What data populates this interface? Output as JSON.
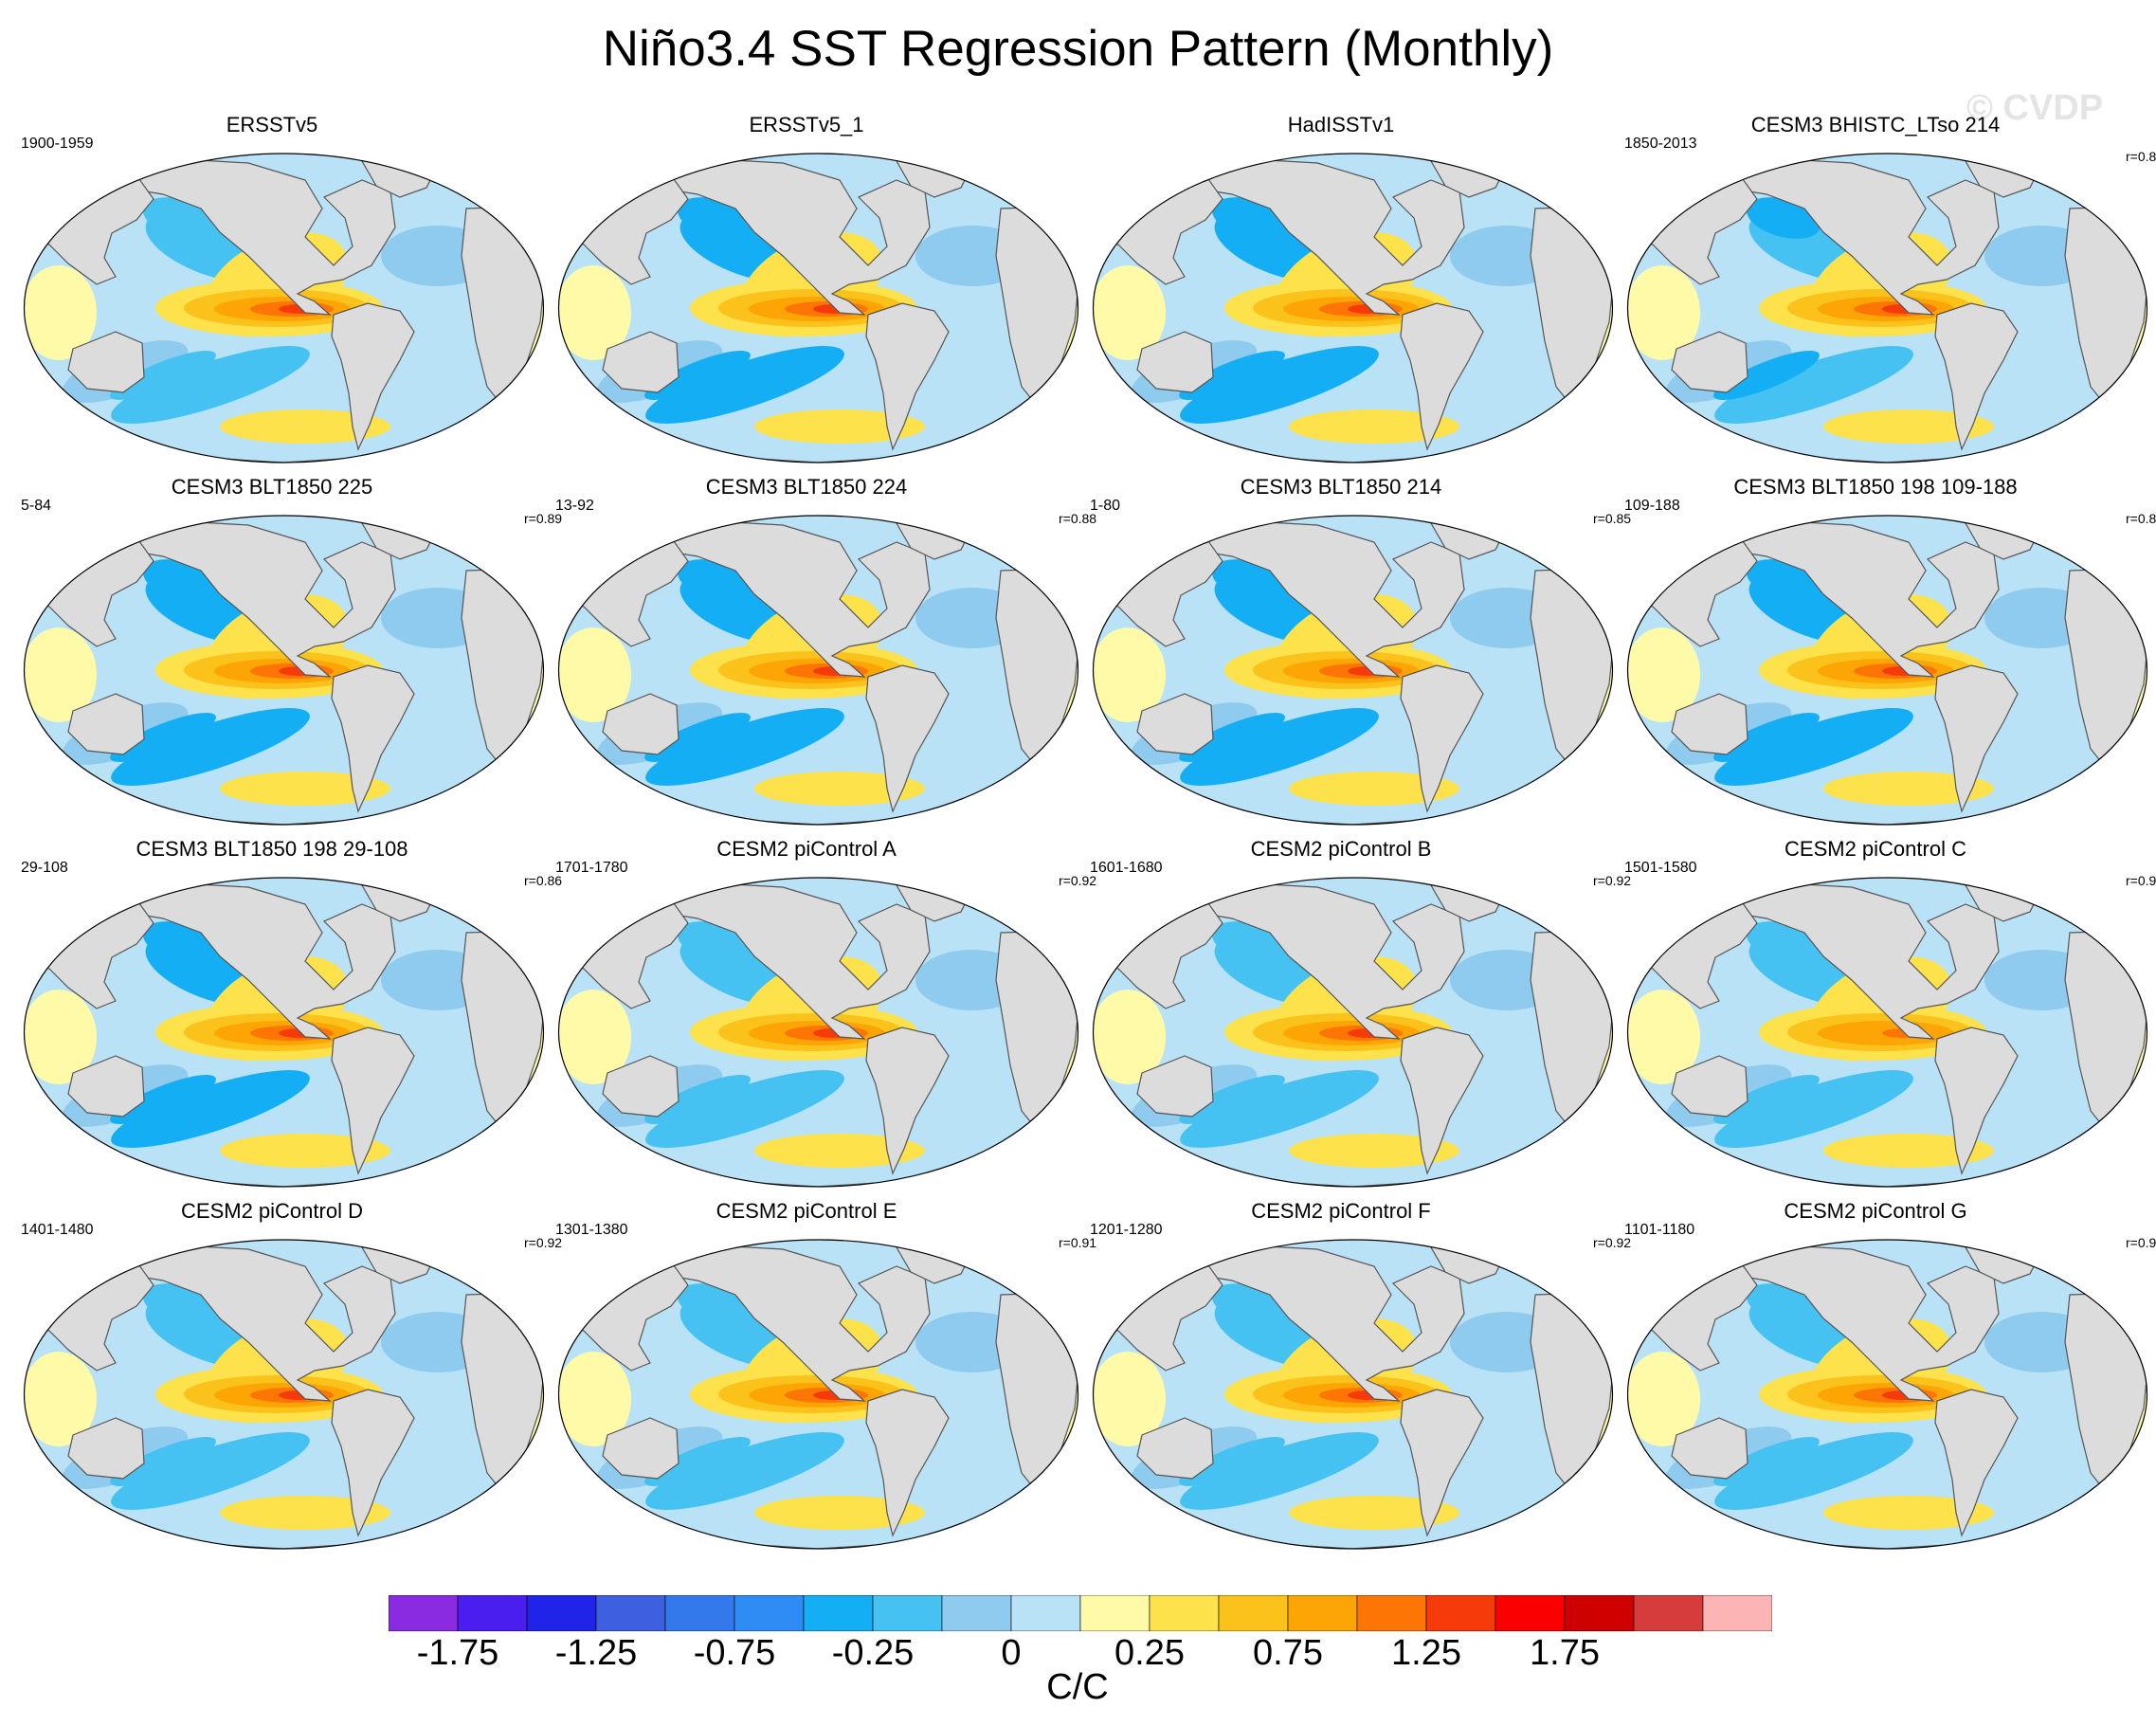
{
  "title": "Niño3.4 SST Regression Pattern (Monthly)",
  "watermark": "© CVDP",
  "panels": [
    {
      "title": "ERSSTv5",
      "period": "1900-1959",
      "r": "",
      "warm": 1.0,
      "south_cool": 0.55
    },
    {
      "title": "ERSSTv5_1",
      "period": "",
      "r": "",
      "warm": 1.05,
      "south_cool": 0.75
    },
    {
      "title": "HadISSTv1",
      "period": "",
      "r": "",
      "warm": 1.15,
      "south_cool": 0.7
    },
    {
      "title": "CESM3 BHISTC_LTso 214",
      "period": "1850-2013",
      "r": "r=0.8",
      "warm": 1.05,
      "south_cool": 0.65
    },
    {
      "title": "CESM3 BLT1850 225",
      "period": "5-84",
      "r": "r=0.89",
      "warm": 1.05,
      "south_cool": 0.85
    },
    {
      "title": "CESM3 BLT1850 224",
      "period": "13-92",
      "r": "r=0.88",
      "warm": 1.0,
      "south_cool": 0.85
    },
    {
      "title": "CESM3 BLT1850 214",
      "period": "1-80",
      "r": "r=0.85",
      "warm": 1.05,
      "south_cool": 0.8
    },
    {
      "title": "CESM3 BLT1850 198 109-188",
      "period": "109-188",
      "r": "r=0.8",
      "warm": 1.05,
      "south_cool": 0.8
    },
    {
      "title": "CESM3 BLT1850 198 29-108",
      "period": "29-108",
      "r": "r=0.86",
      "warm": 1.1,
      "south_cool": 0.8
    },
    {
      "title": "CESM2 piControl A",
      "period": "1701-1780",
      "r": "r=0.92",
      "warm": 1.0,
      "south_cool": 0.55
    },
    {
      "title": "CESM2 piControl B",
      "period": "1601-1680",
      "r": "r=0.92",
      "warm": 1.0,
      "south_cool": 0.55
    },
    {
      "title": "CESM2 piControl C",
      "period": "1501-1580",
      "r": "r=0.9",
      "warm": 0.95,
      "south_cool": 0.55
    },
    {
      "title": "CESM2 piControl D",
      "period": "1401-1480",
      "r": "r=0.92",
      "warm": 1.1,
      "south_cool": 0.55
    },
    {
      "title": "CESM2 piControl E",
      "period": "1301-1380",
      "r": "r=0.91",
      "warm": 1.15,
      "south_cool": 0.55
    },
    {
      "title": "CESM2 piControl F",
      "period": "1201-1280",
      "r": "r=0.92",
      "warm": 1.1,
      "south_cool": 0.55
    },
    {
      "title": "CESM2 piControl G",
      "period": "1101-1180",
      "r": "r=0.9",
      "warm": 1.0,
      "south_cool": 0.55
    }
  ],
  "colorbar": {
    "units": "C/C",
    "levels": [
      -2,
      -1.75,
      -1.5,
      -1.25,
      -1,
      -0.75,
      -0.5,
      -0.25,
      -0.1,
      0,
      0.1,
      0.25,
      0.5,
      0.75,
      1,
      1.25,
      1.5,
      1.75,
      2,
      2.25,
      2.5
    ],
    "colors": [
      "#8a2be2",
      "#4b1ef0",
      "#1f24e8",
      "#3e5fe0",
      "#3479ec",
      "#2f8cf5",
      "#14aef5",
      "#45c2f2",
      "#8ecbee",
      "#b9e2f6",
      "#fffaa8",
      "#fde24c",
      "#fcc21c",
      "#fda504",
      "#fd7505",
      "#f73a0a",
      "#fb0000",
      "#cf0000",
      "#d73c3c",
      "#fcb4b4"
    ],
    "tick_labels": [
      "-1.75",
      "-1.25",
      "-0.75",
      "-0.25",
      "0",
      "0.25",
      "0.75",
      "1.25",
      "1.75"
    ],
    "tick_boundary_index": [
      1,
      3,
      5,
      7,
      9,
      11,
      13,
      15,
      17
    ]
  },
  "colors": {
    "land": "#dcdcdc",
    "coast": "#555555"
  }
}
